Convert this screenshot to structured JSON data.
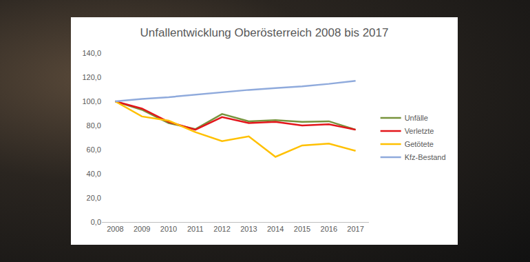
{
  "chart_data": {
    "type": "line",
    "title": "Unfallentwicklung Oberösterreich 2008 bis 2017",
    "categories": [
      "2008",
      "2009",
      "2010",
      "2011",
      "2012",
      "2013",
      "2014",
      "2015",
      "2016",
      "2017"
    ],
    "series": [
      {
        "name": "Unfälle",
        "color": "#77933c",
        "values": [
          100,
          93,
          82,
          77,
          89.5,
          83.5,
          84.5,
          83,
          83.5,
          76.5
        ]
      },
      {
        "name": "Verletzte",
        "color": "#e3151b",
        "values": [
          100,
          94,
          83,
          76.5,
          87,
          82,
          83,
          80,
          81,
          76.5
        ]
      },
      {
        "name": "Getötete",
        "color": "#ffc000",
        "values": [
          100,
          87.5,
          84,
          74.5,
          67,
          71,
          54,
          63.5,
          65,
          59
        ]
      },
      {
        "name": "Kfz-Bestand",
        "color": "#8faadc",
        "values": [
          100,
          102,
          103.5,
          105.5,
          107.5,
          109.5,
          111,
          112.5,
          114.5,
          117
        ]
      }
    ],
    "ylim": [
      0,
      140
    ],
    "yticks": [
      {
        "value": 0,
        "label": "0,0"
      },
      {
        "value": 20,
        "label": "20,0"
      },
      {
        "value": 40,
        "label": "40,0"
      },
      {
        "value": 60,
        "label": "60,0"
      },
      {
        "value": 80,
        "label": "80,0"
      },
      {
        "value": 100,
        "label": "100,0"
      },
      {
        "value": 120,
        "label": "120,0"
      },
      {
        "value": 140,
        "label": "140,0"
      }
    ],
    "grid": false,
    "legend": "right"
  }
}
